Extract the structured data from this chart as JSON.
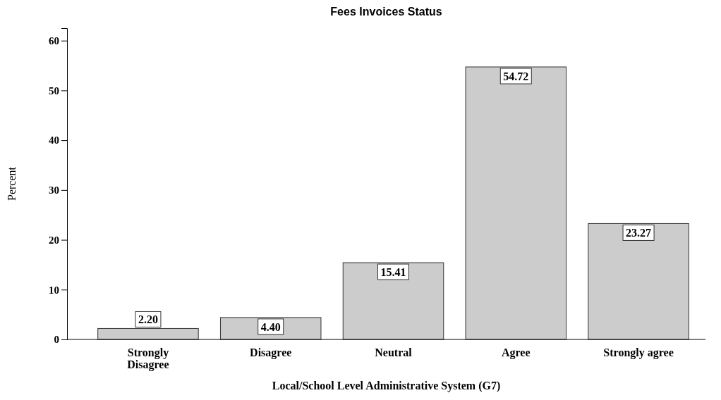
{
  "chart_data": {
    "type": "bar",
    "title": "Fees Invoices Status",
    "xlabel": "Local/School Level Administrative System (G7)",
    "ylabel": "Percent",
    "categories": [
      "Strongly Disagree",
      "Disagree",
      "Neutral",
      "Agree",
      "Strongly agree"
    ],
    "values": [
      2.2,
      4.4,
      15.41,
      54.72,
      23.27
    ],
    "color": "#cccccc",
    "data_labels": true,
    "value_labels": [
      "2.20",
      "4.40",
      "15.41",
      "54.72",
      "23.27"
    ],
    "ylim": [
      0,
      62.5
    ],
    "yticks": [
      0,
      10,
      20,
      30,
      40,
      50,
      60
    ],
    "grid": false
  }
}
